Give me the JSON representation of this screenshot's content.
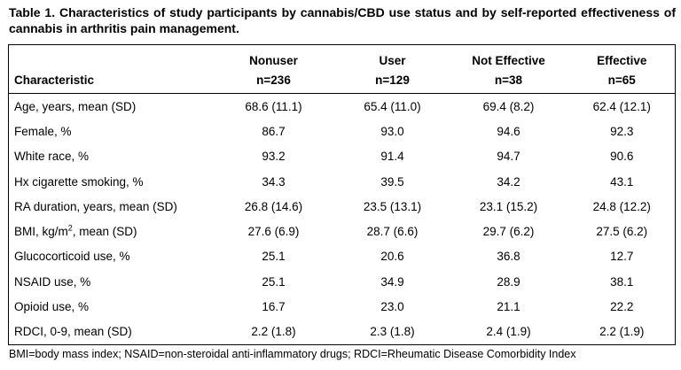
{
  "caption": "Table 1. Characteristics of study participants by cannabis/CBD use status and by self-reported effectiveness of cannabis in arthritis pain management.",
  "table": {
    "header_groups": [
      "Nonuser",
      "User",
      "Not Effective",
      "Effective"
    ],
    "header_first": "Characteristic",
    "header_counts": [
      "n=236",
      "n=129",
      "n=38",
      "n=65"
    ],
    "rows": [
      {
        "label": "Age, years, mean (SD)",
        "values": [
          "68.6 (11.1)",
          "65.4 (11.0)",
          "69.4 (8.2)",
          "62.4 (12.1)"
        ]
      },
      {
        "label": "Female, %",
        "values": [
          "86.7",
          "93.0",
          "94.6",
          "92.3"
        ]
      },
      {
        "label": "White race, %",
        "values": [
          "93.2",
          "91.4",
          "94.7",
          "90.6"
        ]
      },
      {
        "label": "Hx cigarette smoking, %",
        "values": [
          "34.3",
          "39.5",
          "34.2",
          "43.1"
        ]
      },
      {
        "label": "RA duration, years, mean (SD)",
        "values": [
          "26.8 (14.6)",
          "23.5 (13.1)",
          "23.1 (15.2)",
          "24.8 (12.2)"
        ]
      },
      {
        "label_pre": "BMI, kg/m",
        "label_sup": "2",
        "label_post": ", mean (SD)",
        "values": [
          "27.6 (6.9)",
          "28.7 (6.6)",
          "29.7 (6.2)",
          "27.5 (6.2)"
        ]
      },
      {
        "label": "Glucocorticoid use, %",
        "values": [
          "25.1",
          "20.6",
          "36.8",
          "12.7"
        ]
      },
      {
        "label": "NSAID use, %",
        "values": [
          "25.1",
          "34.9",
          "28.9",
          "38.1"
        ]
      },
      {
        "label": "Opioid use, %",
        "values": [
          "16.7",
          "23.0",
          "21.1",
          "22.2"
        ]
      },
      {
        "label": "RDCI, 0-9, mean (SD)",
        "values": [
          "2.2 (1.8)",
          "2.3 (1.8)",
          "2.4 (1.9)",
          "2.2 (1.9)"
        ]
      }
    ]
  },
  "footnote": "BMI=body mass index; NSAID=non-steroidal anti-inflammatory drugs; RDCI=Rheumatic Disease Comorbidity Index"
}
